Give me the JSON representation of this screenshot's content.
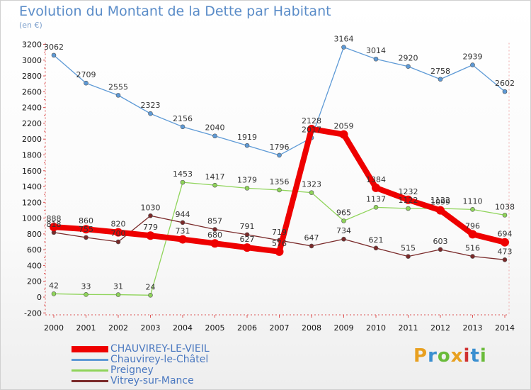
{
  "title": "Evolution du Montant de la Dette par Habitant",
  "subtitle": "(en €)",
  "logo": {
    "text": "Proxiti",
    "colors": [
      "#e8a020",
      "#3a8fd0",
      "#6abb3a",
      "#e8a020",
      "#d03030",
      "#3a8fd0",
      "#6abb3a"
    ]
  },
  "chart_data": {
    "type": "line",
    "title": "Evolution du Montant de la Dette par Habitant",
    "ylabel": "(en €)",
    "xlabel": "",
    "x": [
      "2000",
      "2001",
      "2002",
      "2003",
      "2004",
      "2005",
      "2006",
      "2007",
      "2008",
      "2009",
      "2010",
      "2011",
      "2012",
      "2013",
      "2014"
    ],
    "ylim": [
      -200,
      3200
    ],
    "yticks": [
      "-200",
      "0",
      "200",
      "400",
      "600",
      "800",
      "1000",
      "1200",
      "1400",
      "1600",
      "1800",
      "2000",
      "2200",
      "2400",
      "2600",
      "2800",
      "3000",
      "3200"
    ],
    "grid": false,
    "legend_position": "bottom-left",
    "series": [
      {
        "name": "CHAUVIREY-LE-VIEIL",
        "color": "#ee0000",
        "values": [
          888,
          860,
          820,
          779,
          731,
          680,
          627,
          576,
          2128,
          2059,
          1384,
          1232,
          1099,
          796,
          694
        ],
        "labels": [
          "888",
          "860",
          "820",
          "779",
          "731",
          "680",
          "627",
          "576",
          "2128",
          "2059",
          "1384",
          "1232",
          "1099",
          "796",
          "694"
        ]
      },
      {
        "name": "Chauvirey-le-Châtel",
        "color": "#5e9ad6",
        "values": [
          3062,
          2709,
          2555,
          2323,
          2156,
          2040,
          1919,
          1796,
          2017,
          3164,
          3014,
          2920,
          2758,
          2939,
          2602
        ],
        "labels": [
          "3062",
          "2709",
          "2555",
          "2323",
          "2156",
          "2040",
          "1919",
          "1796",
          "2017",
          "3164",
          "3014",
          "2920",
          "2758",
          "2939",
          "2602"
        ]
      },
      {
        "name": "Preigney",
        "color": "#8fd45a",
        "values": [
          42,
          33,
          31,
          24,
          1453,
          1417,
          1379,
          1356,
          1323,
          965,
          1137,
          1122,
          1122,
          1110,
          1038
        ],
        "labels": [
          "42",
          "33",
          "31",
          "24",
          "1453",
          "1417",
          "1379",
          "1356",
          "1323",
          "965",
          "1137",
          "1122",
          "1122",
          "1110",
          "1038"
        ]
      },
      {
        "name": "Vitrey-sur-Mance",
        "color": "#7a2a2a",
        "values": [
          818,
          755,
          700,
          1030,
          944,
          857,
          791,
          719,
          647,
          734,
          621,
          515,
          603,
          516,
          473
        ],
        "labels": [
          "818",
          "755",
          "700",
          "1030",
          "944",
          "857",
          "791",
          "719",
          "647",
          "734",
          "621",
          "515",
          "603",
          "516",
          "473"
        ]
      }
    ]
  }
}
